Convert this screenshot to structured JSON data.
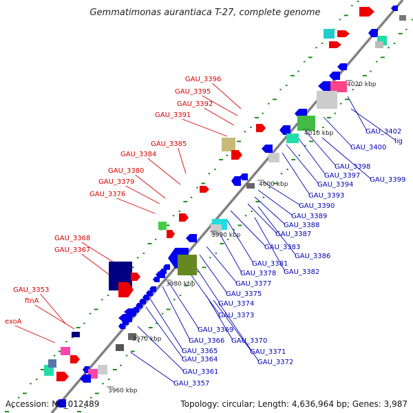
{
  "title": "Gemmatimonas aurantiaca T-27, complete genome",
  "footer": {
    "accession": "Accession: NC_012489",
    "topology": "Topology: circular; Length: 4,636,964 bp; Genes: 3,987"
  },
  "colors": {
    "forward_gene": "#ee0000",
    "reverse_gene": "#0000ee",
    "backbone": "#888888",
    "gc_dot": "#1a8a1a",
    "label_forward": "#d40000",
    "label_reverse": "#0000b0"
  },
  "ticks": [
    "3960 kbp",
    "3970 kbp",
    "3980 kbp",
    "3990 kbp",
    "4000 kbp",
    "4010 kbp",
    "4020 kbp"
  ],
  "labels_forward": [
    "GAU_3396",
    "GAU_3395",
    "GAU_3392",
    "GAU_3391",
    "GAU_3385",
    "GAU_3384",
    "GAU_3380",
    "GAU_3379",
    "GAU_3376",
    "GAU_3368",
    "GAU_3367",
    "GAU_3353",
    "ftnA",
    "exoA"
  ],
  "labels_reverse": [
    "GAU_3402",
    "lig",
    "GAU_3400",
    "GAU_3398",
    "GAU_3397",
    "GAU_3399",
    "GAU_3394",
    "GAU_3393",
    "GAU_3390",
    "GAU_3389",
    "GAU_3388",
    "GAU_3387",
    "GAU_3383",
    "GAU_3386",
    "GAU_3381",
    "GAU_3378",
    "GAU_3382",
    "GAU_3377",
    "GAU_3375",
    "GAU_3374",
    "GAU_3373",
    "GAU_3369",
    "GAU_3366",
    "GAU_3370",
    "GAU_3365",
    "GAU_3364",
    "GAU_3371",
    "GAU_3372",
    "GAU_3361",
    "GAU_3357"
  ]
}
